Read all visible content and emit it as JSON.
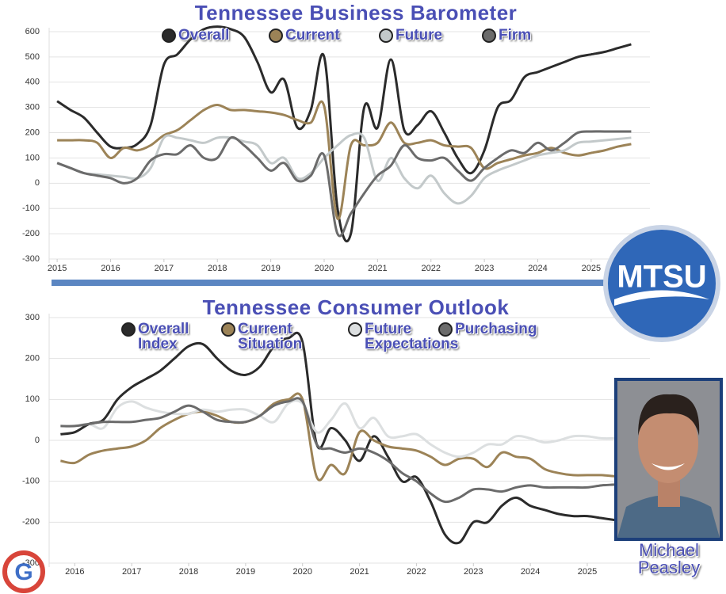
{
  "chart_data": [
    {
      "type": "line",
      "title": "Tennessee Business Barometer",
      "x": [
        2015,
        2015.25,
        2015.5,
        2015.75,
        2016,
        2016.25,
        2016.5,
        2016.75,
        2017,
        2017.25,
        2017.5,
        2017.75,
        2018,
        2018.25,
        2018.5,
        2018.75,
        2019,
        2019.25,
        2019.5,
        2019.75,
        2020,
        2020.25,
        2020.5,
        2020.75,
        2021,
        2021.25,
        2021.5,
        2021.75,
        2022,
        2022.25,
        2022.5,
        2022.75,
        2023,
        2023.25,
        2023.5,
        2023.75,
        2024,
        2024.25,
        2024.5,
        2024.75,
        2025,
        2025.25,
        2025.5,
        2025.75
      ],
      "series": [
        {
          "name": "Overall",
          "color": "#2b2b2b",
          "values": [
            325,
            290,
            260,
            200,
            145,
            140,
            155,
            230,
            470,
            510,
            570,
            610,
            620,
            610,
            580,
            480,
            360,
            410,
            220,
            290,
            500,
            -100,
            -200,
            300,
            220,
            490,
            210,
            230,
            285,
            200,
            100,
            40,
            130,
            300,
            330,
            420,
            440,
            460,
            480,
            500,
            510,
            520,
            535,
            550
          ]
        },
        {
          "name": "Current",
          "color": "#9c8357",
          "values": [
            170,
            170,
            170,
            160,
            100,
            140,
            130,
            150,
            190,
            210,
            250,
            290,
            310,
            290,
            290,
            285,
            280,
            270,
            250,
            240,
            305,
            -140,
            150,
            150,
            160,
            240,
            160,
            160,
            170,
            150,
            145,
            140,
            60,
            80,
            95,
            110,
            120,
            140,
            120,
            110,
            120,
            130,
            145,
            155
          ]
        },
        {
          "name": "Future",
          "color": "#c3c9ca",
          "values": [
            80,
            60,
            40,
            35,
            30,
            25,
            20,
            60,
            180,
            180,
            170,
            160,
            180,
            180,
            165,
            150,
            80,
            100,
            20,
            40,
            100,
            150,
            190,
            180,
            10,
            100,
            20,
            -20,
            30,
            -40,
            -80,
            -50,
            20,
            50,
            70,
            90,
            110,
            120,
            130,
            160,
            165,
            170,
            175,
            180
          ]
        },
        {
          "name": "Firm",
          "color": "#6b6b6b",
          "values": [
            80,
            60,
            40,
            30,
            20,
            0,
            20,
            90,
            115,
            115,
            150,
            100,
            100,
            180,
            150,
            100,
            50,
            80,
            10,
            30,
            110,
            -200,
            -120,
            -40,
            30,
            70,
            150,
            100,
            90,
            100,
            50,
            10,
            60,
            100,
            130,
            120,
            160,
            130,
            160,
            200,
            205,
            205,
            205,
            205
          ]
        }
      ],
      "xlim": [
        2014.85,
        2026.1
      ],
      "xticks": [
        2015,
        2016,
        2017,
        2018,
        2019,
        2020,
        2021,
        2022,
        2023,
        2024,
        2025
      ],
      "ylim": [
        -300,
        600
      ],
      "yticks": [
        -300,
        -200,
        -100,
        0,
        100,
        200,
        300,
        400,
        500,
        600
      ],
      "grid": true
    },
    {
      "type": "line",
      "title": "Tennessee Consumer Outlook",
      "x": [
        2015.75,
        2016,
        2016.25,
        2016.5,
        2016.75,
        2017,
        2017.25,
        2017.5,
        2017.75,
        2018,
        2018.25,
        2018.5,
        2018.75,
        2019,
        2019.25,
        2019.5,
        2019.75,
        2020,
        2020.25,
        2020.5,
        2020.75,
        2021,
        2021.25,
        2021.5,
        2021.75,
        2022,
        2022.25,
        2022.5,
        2022.75,
        2023,
        2023.25,
        2023.5,
        2023.75,
        2024,
        2024.25,
        2024.5,
        2024.75,
        2025,
        2025.25,
        2025.5,
        2025.75
      ],
      "series": [
        {
          "name": "Overall Index",
          "color": "#2b2b2b",
          "values": [
            15,
            20,
            40,
            50,
            100,
            130,
            150,
            170,
            200,
            230,
            235,
            200,
            170,
            160,
            180,
            230,
            250,
            240,
            -10,
            30,
            0,
            -50,
            10,
            -40,
            -100,
            -90,
            -150,
            -230,
            -250,
            -200,
            -200,
            -160,
            -140,
            -160,
            -170,
            -180,
            -185,
            -185,
            -190,
            -195,
            -200
          ]
        },
        {
          "name": "Current Situation",
          "color": "#9c8357",
          "values": [
            -50,
            -55,
            -35,
            -25,
            -20,
            -15,
            0,
            30,
            50,
            65,
            70,
            60,
            45,
            45,
            60,
            90,
            100,
            100,
            -90,
            -60,
            -80,
            20,
            0,
            -15,
            -20,
            -25,
            -40,
            -60,
            -45,
            -45,
            -65,
            -30,
            -40,
            -45,
            -70,
            -80,
            -85,
            -85,
            -85,
            -88,
            -90
          ]
        },
        {
          "name": "Future Expectations",
          "color": "#dcdfe0",
          "values": [
            35,
            35,
            40,
            30,
            80,
            95,
            80,
            70,
            65,
            65,
            75,
            70,
            75,
            75,
            60,
            45,
            90,
            90,
            20,
            50,
            90,
            30,
            55,
            10,
            10,
            15,
            -10,
            -30,
            -40,
            -30,
            -10,
            -10,
            10,
            5,
            -5,
            0,
            10,
            10,
            5,
            5,
            5
          ]
        },
        {
          "name": "Purchasing",
          "color": "#6b6b6b",
          "values": [
            35,
            35,
            40,
            45,
            45,
            45,
            50,
            55,
            70,
            85,
            70,
            50,
            45,
            45,
            60,
            85,
            95,
            95,
            -10,
            -20,
            -30,
            -20,
            -30,
            -50,
            -80,
            -100,
            -130,
            -150,
            -140,
            -120,
            -120,
            -125,
            -115,
            -110,
            -115,
            -115,
            -115,
            -115,
            -110,
            -108,
            -105
          ]
        }
      ],
      "xlim": [
        2015.55,
        2026.1
      ],
      "xticks": [
        2016,
        2017,
        2018,
        2019,
        2020,
        2021,
        2022,
        2023,
        2024,
        2025
      ],
      "ylim": [
        -300,
        300
      ],
      "yticks": [
        -300,
        -200,
        -100,
        0,
        100,
        200,
        300
      ],
      "grid": true
    }
  ],
  "logo": "MTSU",
  "caption": "Michael Peasley"
}
